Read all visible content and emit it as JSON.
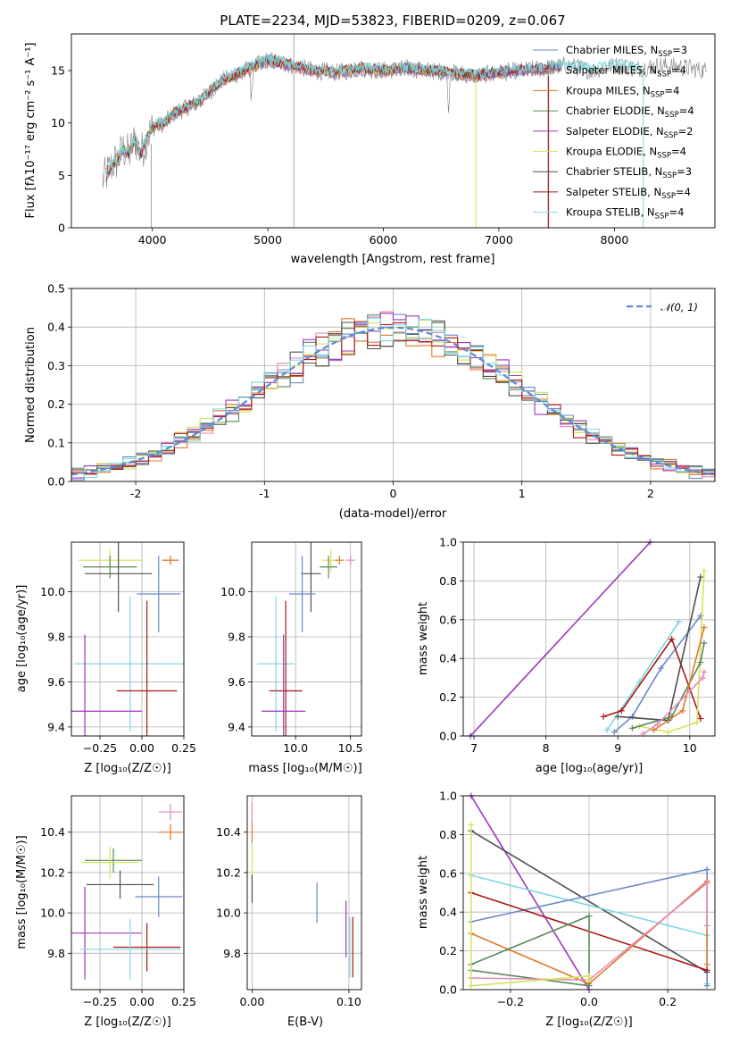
{
  "figure": {
    "title": "PLATE=2234, MJD=53823, FIBERID=0209, z=0.067",
    "colors": {
      "Chabrier MILES": "#6a8ac8",
      "Salpeter MILES": "#e38ab8",
      "Kroupa MILES": "#e0782a",
      "Chabrier ELODIE": "#5a8a5a",
      "Salpeter ELODIE": "#9a38b8",
      "Kroupa ELODIE": "#d4e45a",
      "Chabrier STELIB": "#505050",
      "Salpeter STELIB": "#aa1818",
      "Kroupa STELIB": "#7fd8e0",
      "spectrum": "#808080",
      "gaussian": "#5a8ad8",
      "grid": "#b0b0b0"
    }
  },
  "chart_data": [
    {
      "id": "spectrum",
      "type": "line",
      "title": "PLATE=2234, MJD=53823, FIBERID=0209, z=0.067",
      "xlabel": "wavelength [Angstrom, rest frame]",
      "ylabel": "Flux [f$_\\lambda$10$^{-17}$ erg cm$^{-2}$ s$^{-1}$ A$^{-1}$]",
      "ylabel_display": "Flux [fλ10⁻¹⁷ erg cm⁻² s⁻¹ A⁻¹]",
      "xlim": [
        3300,
        8870
      ],
      "ylim": [
        0,
        18.5
      ],
      "xticks": [
        4000,
        5000,
        6000,
        7000,
        8000
      ],
      "yticks": [
        0,
        5,
        10,
        15
      ],
      "grid": false,
      "legend_position": "top-right",
      "observed_spectrum": {
        "x": [
          3570,
          3600,
          3650,
          3700,
          3750,
          3800,
          3850,
          3900,
          3950,
          4000,
          4100,
          4200,
          4300,
          4400,
          4500,
          4600,
          4700,
          4800,
          4900,
          5000,
          5200,
          5400,
          5600,
          5800,
          6000,
          6200,
          6400,
          6600,
          6800,
          7000,
          7200,
          7400,
          7600,
          7800,
          8000,
          8200,
          8400,
          8600,
          8800
        ],
        "y": [
          4.5,
          5.0,
          6.0,
          6.5,
          7.5,
          7.0,
          8.5,
          7.0,
          8.5,
          9.5,
          10.0,
          11.0,
          11.5,
          12.0,
          13.0,
          14.0,
          14.5,
          15.0,
          15.5,
          16.0,
          15.5,
          15.0,
          14.8,
          15.2,
          15.0,
          15.2,
          15.0,
          14.8,
          14.5,
          14.8,
          15.0,
          15.2,
          15.5,
          15.0,
          15.5,
          15.2,
          15.5,
          15.3,
          15.0
        ]
      },
      "series": [
        {
          "name": "Chabrier MILES, N$_{SSP}$=3",
          "label_main": "Chabrier MILES, N",
          "label_sub": "SSP",
          "label_tail": "=3"
        },
        {
          "name": "Salpeter MILES, N$_{SSP}$=4",
          "label_main": "Salpeter MILES, N",
          "label_sub": "SSP",
          "label_tail": "=4"
        },
        {
          "name": "Kroupa MILES, N$_{SSP}$=4",
          "label_main": "Kroupa MILES, N",
          "label_sub": "SSP",
          "label_tail": "=4"
        },
        {
          "name": "Chabrier ELODIE, N$_{SSP}$=4",
          "label_main": "Chabrier ELODIE, N",
          "label_sub": "SSP",
          "label_tail": "=4"
        },
        {
          "name": "Salpeter ELODIE, N$_{SSP}$=2",
          "label_main": "Salpeter ELODIE, N",
          "label_sub": "SSP",
          "label_tail": "=2"
        },
        {
          "name": "Kroupa ELODIE, N$_{SSP}$=4",
          "label_main": "Kroupa ELODIE, N",
          "label_sub": "SSP",
          "label_tail": "=4"
        },
        {
          "name": "Chabrier STELIB, N$_{SSP}$=3",
          "label_main": "Chabrier STELIB, N",
          "label_sub": "SSP",
          "label_tail": "=3"
        },
        {
          "name": "Salpeter STELIB, N$_{SSP}$=4",
          "label_main": "Salpeter STELIB, N",
          "label_sub": "SSP",
          "label_tail": "=4"
        },
        {
          "name": "Kroupa STELIB, N$_{SSP}$=4",
          "label_main": "Kroupa STELIB, N",
          "label_sub": "SSP",
          "label_tail": "=4"
        }
      ]
    },
    {
      "id": "residuals",
      "type": "histogram",
      "xlabel": "(data-model)/error",
      "ylabel": "Normed distribution",
      "xlim": [
        -2.5,
        2.5
      ],
      "ylim": [
        0,
        0.5
      ],
      "xticks": [
        -2,
        -1,
        0,
        1,
        2
      ],
      "yticks": [
        0.0,
        0.1,
        0.2,
        0.3,
        0.4,
        0.5
      ],
      "grid": true,
      "legend_position": "top-right",
      "reference_curve": {
        "name": "$\\mathcal{N}(0,1)$",
        "display": "𝒩(0, 1)",
        "style": "dashed",
        "mean": 0,
        "sd": 1
      },
      "bin_width": 0.1
    },
    {
      "id": "age_vs_Z",
      "type": "scatter",
      "xlabel": "Z [log$_{10}$(Z/Z$_\\odot$)]",
      "xlabel_display": "Z [log₁₀(Z/Z☉)]",
      "ylabel": "age  [log$_{10}$(age/yr)]",
      "ylabel_display": "age  [log₁₀(age/yr)]",
      "xlim": [
        -0.42,
        0.25
      ],
      "ylim": [
        9.36,
        10.22
      ],
      "xticks": [
        -0.25,
        0.0,
        0.25
      ],
      "xticklabels": [
        "−0.25",
        "0.00",
        "0.25"
      ],
      "yticks": [
        9.4,
        9.6,
        9.8,
        10.0
      ],
      "yticklabels": [
        "9.4",
        "9.6",
        "9.8",
        "10.0"
      ],
      "grid": true,
      "points": [
        {
          "series": "Kroupa ELODIE",
          "x": -0.19,
          "xerr": 0.19,
          "y": 10.14,
          "yerr": 0.05
        },
        {
          "series": "Chabrier ELODIE",
          "x": -0.19,
          "xerr": 0.16,
          "y": 10.11,
          "yerr": 0.05
        },
        {
          "series": "Chabrier STELIB",
          "x": -0.14,
          "xerr": 0.2,
          "y": 10.08,
          "yerr": 0.17
        },
        {
          "series": "Salpeter MILES",
          "x": 0.17,
          "xerr": 0.05,
          "y": 10.14,
          "yerr": 0.02
        },
        {
          "series": "Kroupa MILES",
          "x": 0.17,
          "xerr": 0.05,
          "y": 10.14,
          "yerr": 0.02
        },
        {
          "series": "Chabrier MILES",
          "x": 0.1,
          "xerr": 0.13,
          "y": 9.99,
          "yerr": 0.17
        },
        {
          "series": "Kroupa STELIB",
          "x": -0.07,
          "xerr": 0.33,
          "y": 9.68,
          "yerr": 0.3
        },
        {
          "series": "Salpeter STELIB",
          "x": 0.03,
          "xerr": 0.18,
          "y": 9.56,
          "yerr": 0.4
        },
        {
          "series": "Salpeter ELODIE",
          "x": -0.34,
          "xerr": 0.34,
          "y": 9.47,
          "yerr": 0.34
        }
      ]
    },
    {
      "id": "age_vs_mass",
      "type": "scatter",
      "xlabel": "mass [log$_{10}$(M/M$_\\odot$)]",
      "xlabel_display": "mass [log₁₀(M/M☉)]",
      "xlim": [
        9.6,
        10.6
      ],
      "ylim": [
        9.36,
        10.22
      ],
      "xticks": [
        10.0,
        10.5
      ],
      "xticklabels": [
        "10.0",
        "10.5"
      ],
      "yticks": [
        9.4,
        9.6,
        9.8,
        10.0
      ],
      "yticklabels": [
        "9.4",
        "9.6",
        "9.8",
        "10.0"
      ],
      "grid": true,
      "points": [
        {
          "series": "Kroupa ELODIE",
          "x": 10.32,
          "xerr": 0.08,
          "y": 10.14,
          "yerr": 0.05
        },
        {
          "series": "Chabrier ELODIE",
          "x": 10.3,
          "xerr": 0.08,
          "y": 10.11,
          "yerr": 0.05
        },
        {
          "series": "Chabrier STELIB",
          "x": 10.14,
          "xerr": 0.09,
          "y": 10.08,
          "yerr": 0.17
        },
        {
          "series": "Salpeter MILES",
          "x": 10.5,
          "xerr": 0.04,
          "y": 10.14,
          "yerr": 0.02
        },
        {
          "series": "Kroupa MILES",
          "x": 10.4,
          "xerr": 0.04,
          "y": 10.14,
          "yerr": 0.02
        },
        {
          "series": "Chabrier MILES",
          "x": 10.06,
          "xerr": 0.12,
          "y": 9.99,
          "yerr": 0.17
        },
        {
          "series": "Kroupa STELIB",
          "x": 9.82,
          "xerr": 0.17,
          "y": 9.68,
          "yerr": 0.3
        },
        {
          "series": "Salpeter STELIB",
          "x": 9.91,
          "xerr": 0.15,
          "y": 9.56,
          "yerr": 0.4
        },
        {
          "series": "Salpeter ELODIE",
          "x": 9.89,
          "xerr": 0.2,
          "y": 9.47,
          "yerr": 0.34
        }
      ]
    },
    {
      "id": "weight_vs_age",
      "type": "line",
      "xlabel": "age  [log$_{10}$(age/yr)]",
      "xlabel_display": "age  [log₁₀(age/yr)]",
      "ylabel": "mass weight",
      "xlim": [
        6.85,
        10.35
      ],
      "ylim": [
        0,
        1.0
      ],
      "xticks": [
        7,
        8,
        9,
        10
      ],
      "yticks": [
        0.0,
        0.2,
        0.4,
        0.6,
        0.8,
        1.0
      ],
      "yticklabels": [
        "0.0",
        "0.2",
        "0.4",
        "0.6",
        "0.8",
        "1.0"
      ],
      "grid": true,
      "series": [
        {
          "name": "Salpeter ELODIE",
          "x": [
            6.95,
            9.45
          ],
          "y": [
            0.0,
            1.0
          ]
        },
        {
          "name": "Chabrier MILES",
          "x": [
            8.95,
            9.2,
            9.6,
            10.15
          ],
          "y": [
            0.02,
            0.1,
            0.35,
            0.62
          ]
        },
        {
          "name": "Kroupa STELIB",
          "x": [
            8.85,
            9.3,
            9.85
          ],
          "y": [
            0.03,
            0.28,
            0.59
          ]
        },
        {
          "name": "Salpeter STELIB",
          "x": [
            8.8,
            9.05,
            9.75,
            10.15
          ],
          "y": [
            0.1,
            0.13,
            0.5,
            0.09
          ]
        },
        {
          "name": "Chabrier STELIB",
          "x": [
            9.0,
            9.7,
            10.15
          ],
          "y": [
            0.1,
            0.08,
            0.82
          ]
        },
        {
          "name": "Kroupa ELODIE",
          "x": [
            9.3,
            9.7,
            10.1,
            10.2
          ],
          "y": [
            0.05,
            0.02,
            0.07,
            0.85
          ]
        },
        {
          "name": "Chabrier ELODIE",
          "x": [
            9.2,
            9.75,
            10.15,
            10.2
          ],
          "y": [
            0.04,
            0.1,
            0.38,
            0.48
          ]
        },
        {
          "name": "Kroupa MILES",
          "x": [
            9.5,
            9.9,
            10.2
          ],
          "y": [
            0.03,
            0.13,
            0.56
          ]
        },
        {
          "name": "Salpeter MILES",
          "x": [
            9.35,
            9.55,
            10.18,
            10.2
          ],
          "y": [
            0.01,
            0.06,
            0.3,
            0.33
          ]
        }
      ]
    },
    {
      "id": "mass_vs_Z",
      "type": "scatter",
      "xlabel": "Z [log$_{10}$(Z/Z$_\\odot$)]",
      "xlabel_display": "Z [log₁₀(Z/Z☉)]",
      "ylabel": "mass [log$_{10}$(M/M$_\\odot$)]",
      "ylabel_display": "mass [log₁₀(M/M☉)]",
      "xlim": [
        -0.42,
        0.25
      ],
      "ylim": [
        9.62,
        10.58
      ],
      "xticks": [
        -0.25,
        0.0,
        0.25
      ],
      "xticklabels": [
        "−0.25",
        "0.00",
        "0.25"
      ],
      "yticks": [
        9.8,
        10.0,
        10.2,
        10.4
      ],
      "yticklabels": [
        "9.8",
        "10.0",
        "10.2",
        "10.4"
      ],
      "grid": true,
      "points": [
        {
          "series": "Salpeter MILES",
          "x": 0.17,
          "xerr": 0.07,
          "y": 10.5,
          "yerr": 0.04
        },
        {
          "series": "Kroupa MILES",
          "x": 0.17,
          "xerr": 0.07,
          "y": 10.4,
          "yerr": 0.04
        },
        {
          "series": "Chabrier ELODIE",
          "x": -0.17,
          "xerr": 0.17,
          "y": 10.26,
          "yerr": 0.06
        },
        {
          "series": "Kroupa ELODIE",
          "x": -0.19,
          "xerr": 0.17,
          "y": 10.25,
          "yerr": 0.08
        },
        {
          "series": "Chabrier STELIB",
          "x": -0.13,
          "xerr": 0.2,
          "y": 10.14,
          "yerr": 0.07
        },
        {
          "series": "Chabrier MILES",
          "x": 0.1,
          "xerr": 0.14,
          "y": 10.08,
          "yerr": 0.1
        },
        {
          "series": "Salpeter ELODIE",
          "x": -0.34,
          "xerr": 0.34,
          "y": 9.9,
          "yerr": 0.23
        },
        {
          "series": "Salpeter STELIB",
          "x": 0.03,
          "xerr": 0.2,
          "y": 9.83,
          "yerr": 0.12
        },
        {
          "series": "Kroupa STELIB",
          "x": -0.07,
          "xerr": 0.3,
          "y": 9.82,
          "yerr": 0.15
        }
      ]
    },
    {
      "id": "mass_vs_ebv",
      "type": "scatter",
      "xlabel": "E(B-V)",
      "xlim": [
        -0.005,
        0.113
      ],
      "ylim": [
        9.62,
        10.58
      ],
      "xticks": [
        0.0,
        0.1
      ],
      "xticklabels": [
        "0.00",
        "0.10"
      ],
      "yticks": [
        9.8,
        10.0,
        10.2,
        10.4
      ],
      "yticklabels": [
        "9.8",
        "10.0",
        "10.2",
        "10.4"
      ],
      "grid": true,
      "points": [
        {
          "series": "Salpeter MILES",
          "x": 0.0,
          "xerr": 0.0,
          "y": 10.5,
          "yerr": 0.05
        },
        {
          "series": "Kroupa MILES",
          "x": 0.0,
          "xerr": 0.0,
          "y": 10.4,
          "yerr": 0.05
        },
        {
          "series": "Kroupa ELODIE",
          "x": 0.0,
          "xerr": 0.0,
          "y": 10.25,
          "yerr": 0.08
        },
        {
          "series": "Chabrier STELIB",
          "x": 0.0,
          "xerr": 0.0,
          "y": 10.12,
          "yerr": 0.07
        },
        {
          "series": "Chabrier MILES",
          "x": 0.067,
          "xerr": 0.0,
          "y": 10.05,
          "yerr": 0.1
        },
        {
          "series": "Salpeter ELODIE",
          "x": 0.097,
          "xerr": 0.0,
          "y": 9.92,
          "yerr": 0.14
        },
        {
          "series": "Salpeter STELIB",
          "x": 0.104,
          "xerr": 0.0,
          "y": 9.83,
          "yerr": 0.15
        },
        {
          "series": "Kroupa STELIB",
          "x": 0.101,
          "xerr": 0.0,
          "y": 9.83,
          "yerr": 0.15
        }
      ]
    },
    {
      "id": "weight_vs_Z",
      "type": "line",
      "xlabel": "Z [log$_{10}$(Z/Z$_\\odot$)]",
      "xlabel_display": "Z [log₁₀(Z/Z☉)]",
      "ylabel": "mass weight",
      "xlim": [
        -0.32,
        0.32
      ],
      "ylim": [
        0,
        1.0
      ],
      "xticks": [
        -0.2,
        0.0,
        0.2
      ],
      "xticklabels": [
        "−0.2",
        "0.0",
        "0.2"
      ],
      "yticks": [
        0.0,
        0.2,
        0.4,
        0.6,
        0.8,
        1.0
      ],
      "yticklabels": [
        "0.0",
        "0.2",
        "0.4",
        "0.6",
        "0.8",
        "1.0"
      ],
      "grid": true,
      "series": [
        {
          "name": "Salpeter ELODIE",
          "x": [
            -0.3,
            0.0
          ],
          "y": [
            1.0,
            0.0
          ]
        },
        {
          "name": "Chabrier STELIB",
          "x": [
            -0.3,
            0.3
          ],
          "y": [
            0.82,
            0.09
          ]
        },
        {
          "name": "Kroupa STELIB",
          "x": [
            -0.3,
            0.3,
            0.3
          ],
          "y": [
            0.59,
            0.28,
            0.03
          ]
        },
        {
          "name": "Chabrier MILES",
          "x": [
            -0.3,
            0.3,
            0.3
          ],
          "y": [
            0.35,
            0.62,
            0.02
          ]
        },
        {
          "name": "Salpeter STELIB",
          "x": [
            -0.3,
            0.3
          ],
          "y": [
            0.5,
            0.1
          ]
        },
        {
          "name": "Kroupa MILES",
          "x": [
            -0.3,
            0.0,
            0.3,
            0.3
          ],
          "y": [
            0.29,
            0.03,
            0.56,
            0.13
          ]
        },
        {
          "name": "Chabrier ELODIE",
          "x": [
            -0.3,
            0.0,
            0.0,
            -0.3
          ],
          "y": [
            0.13,
            0.38,
            0.02,
            0.1
          ]
        },
        {
          "name": "Salpeter MILES",
          "x": [
            -0.3,
            0.0,
            0.3,
            0.3
          ],
          "y": [
            0.06,
            0.05,
            0.55,
            0.33
          ]
        },
        {
          "name": "Kroupa ELODIE",
          "x": [
            -0.3,
            -0.3,
            0.0,
            0.0
          ],
          "y": [
            0.85,
            0.02,
            0.07,
            0.05
          ]
        }
      ]
    }
  ]
}
